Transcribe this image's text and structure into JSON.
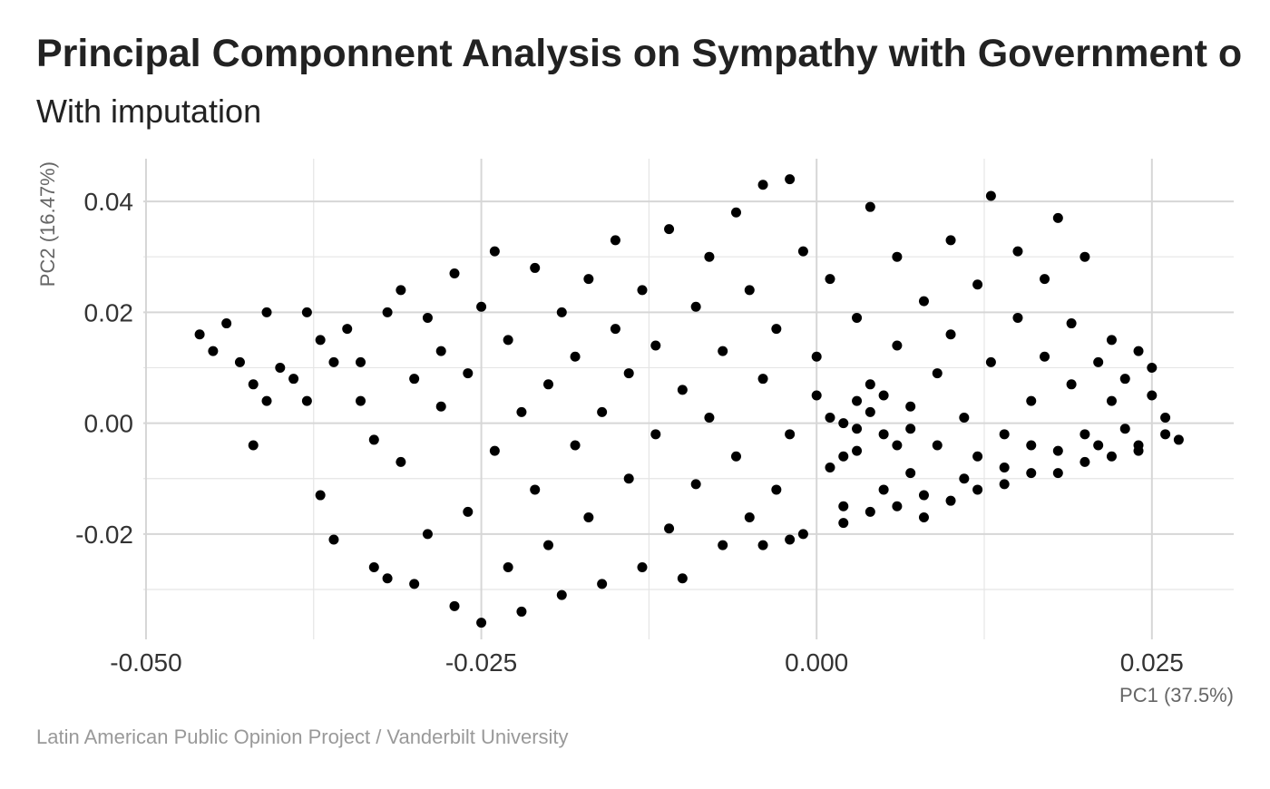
{
  "chart_data": {
    "type": "scatter",
    "title": "Principal Componnent Analysis on Sympathy with Government o",
    "subtitle": "With imputation",
    "x_label": "PC1 (37.5%)",
    "y_label": "PC2 (16.47%)",
    "caption": "Latin American Public Opinion Project / Vanderbilt University",
    "color": "#000000",
    "grid": true,
    "xlim": [
      -0.0502,
      0.0311
    ],
    "ylim": [
      -0.039,
      0.0477
    ],
    "xticks": [
      {
        "value": -0.05,
        "label": "-0.050"
      },
      -0.025,
      {
        "value": 0,
        "label": "0.000"
      },
      0.025
    ],
    "yticks": [
      -0.02,
      {
        "value": 0,
        "label": "0.00"
      },
      0.02,
      0.04
    ],
    "xminor": [
      -0.0375,
      -0.0125,
      0.0125
    ],
    "yminor": [
      -0.03,
      -0.01,
      0.01,
      0.03
    ],
    "x": [
      -0.046,
      -0.045,
      -0.044,
      -0.043,
      -0.042,
      -0.041,
      -0.042,
      -0.041,
      -0.04,
      -0.039,
      -0.038,
      -0.038,
      -0.037,
      -0.036,
      -0.037,
      -0.036,
      -0.035,
      -0.034,
      -0.034,
      -0.033,
      -0.032,
      -0.033,
      -0.032,
      -0.031,
      -0.031,
      -0.03,
      -0.03,
      -0.029,
      -0.029,
      -0.028,
      -0.028,
      -0.027,
      -0.027,
      -0.026,
      -0.026,
      -0.025,
      -0.025,
      -0.024,
      -0.024,
      -0.023,
      -0.023,
      -0.022,
      -0.022,
      -0.021,
      -0.021,
      -0.02,
      -0.02,
      -0.019,
      -0.019,
      -0.018,
      -0.018,
      -0.017,
      -0.017,
      -0.016,
      -0.016,
      -0.015,
      -0.015,
      -0.014,
      -0.014,
      -0.013,
      -0.013,
      -0.012,
      -0.012,
      -0.011,
      -0.011,
      -0.01,
      -0.01,
      -0.009,
      -0.009,
      -0.008,
      -0.008,
      -0.007,
      -0.007,
      -0.006,
      -0.006,
      -0.005,
      -0.005,
      -0.004,
      -0.004,
      -0.003,
      -0.003,
      -0.002,
      -0.002,
      -0.001,
      -0.001,
      0.0,
      0.0,
      0.001,
      0.001,
      0.002,
      0.002,
      0.003,
      0.003,
      0.004,
      0.004,
      0.005,
      0.005,
      0.006,
      0.006,
      0.007,
      0.007,
      0.008,
      0.008,
      0.009,
      0.009,
      0.01,
      0.01,
      0.011,
      0.011,
      0.012,
      0.012,
      0.013,
      0.013,
      0.014,
      0.014,
      0.015,
      0.015,
      0.016,
      0.016,
      0.017,
      0.017,
      0.018,
      0.018,
      0.019,
      0.019,
      0.02,
      0.02,
      0.021,
      0.021,
      0.022,
      0.022,
      0.023,
      0.023,
      0.024,
      0.024,
      0.025,
      0.025,
      0.026,
      0.026,
      0.027,
      0.002,
      0.004,
      0.006,
      0.008,
      0.01,
      0.012,
      0.014,
      0.016,
      0.018,
      0.02,
      0.022,
      0.024,
      -0.002,
      -0.004,
      0.003,
      0.004,
      0.006,
      0.003,
      0.001,
      0.005,
      0.007,
      0.002
    ],
    "y": [
      0.016,
      0.013,
      0.018,
      0.011,
      0.007,
      0.004,
      -0.004,
      0.02,
      0.01,
      0.008,
      0.02,
      0.004,
      0.015,
      0.011,
      -0.013,
      -0.021,
      0.017,
      0.004,
      0.011,
      -0.026,
      -0.028,
      -0.003,
      0.02,
      -0.007,
      0.024,
      0.008,
      -0.029,
      0.019,
      -0.02,
      0.003,
      0.013,
      -0.033,
      0.027,
      -0.016,
      0.009,
      -0.036,
      0.021,
      -0.005,
      0.031,
      -0.026,
      0.015,
      0.002,
      -0.034,
      0.028,
      -0.012,
      0.007,
      -0.022,
      0.02,
      -0.031,
      0.012,
      -0.004,
      0.026,
      -0.017,
      0.002,
      -0.029,
      0.017,
      0.033,
      -0.01,
      0.009,
      -0.026,
      0.024,
      -0.002,
      0.014,
      -0.019,
      0.035,
      0.006,
      -0.028,
      0.021,
      -0.011,
      0.03,
      0.001,
      -0.022,
      0.013,
      0.038,
      -0.006,
      0.024,
      -0.017,
      0.008,
      0.043,
      -0.012,
      0.017,
      0.044,
      -0.002,
      0.031,
      -0.02,
      0.005,
      0.012,
      -0.008,
      0.026,
      -0.015,
      0.0,
      0.019,
      -0.005,
      0.039,
      0.007,
      -0.012,
      -0.002,
      0.014,
      0.03,
      -0.009,
      0.003,
      0.022,
      -0.013,
      0.009,
      -0.004,
      0.033,
      0.016,
      -0.01,
      0.001,
      0.025,
      -0.006,
      0.041,
      0.011,
      -0.002,
      -0.008,
      0.019,
      0.031,
      0.004,
      -0.004,
      0.012,
      0.026,
      -0.005,
      0.037,
      0.007,
      0.018,
      -0.002,
      0.03,
      0.011,
      -0.004,
      0.004,
      0.015,
      -0.001,
      0.008,
      0.013,
      -0.004,
      0.005,
      0.01,
      -0.002,
      0.001,
      -0.003,
      -0.018,
      -0.016,
      -0.015,
      -0.017,
      -0.014,
      -0.012,
      -0.011,
      -0.009,
      -0.009,
      -0.007,
      -0.006,
      -0.005,
      -0.021,
      -0.022,
      -0.001,
      0.002,
      -0.004,
      0.004,
      0.001,
      0.005,
      -0.001,
      -0.006
    ]
  }
}
